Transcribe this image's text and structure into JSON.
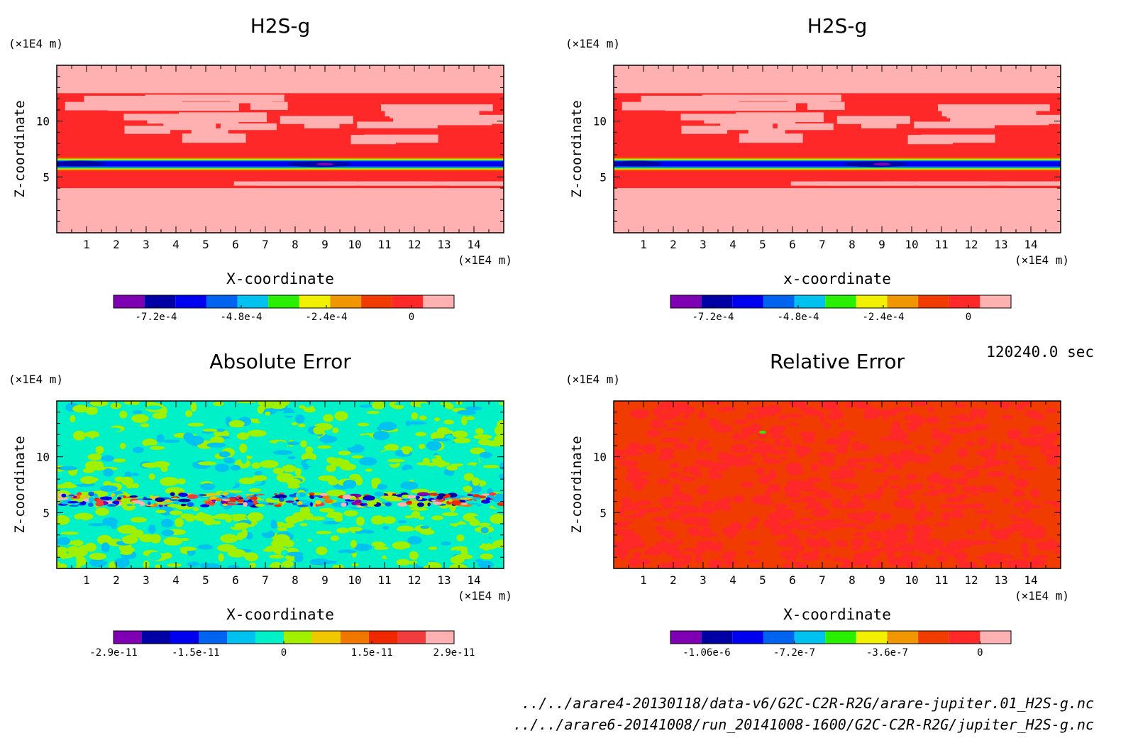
{
  "colors": {
    "absolute_scale": [
      "#7f00b2",
      "#0000a5",
      "#0000f0",
      "#0064f0",
      "#00c2f0",
      "#00f0c8",
      "#a0f000",
      "#f0c800",
      "#f07800",
      "#f02800",
      "#f03c3c",
      "#ffb0b0"
    ],
    "h2s_scale": [
      "#7f00b2",
      "#0000a5",
      "#0000f0",
      "#0064f0",
      "#00c2f0",
      "#28f000",
      "#f0f000",
      "#f09600",
      "#f03c00",
      "#ff2828",
      "#ffb0b0"
    ],
    "relative_scale": [
      "#7f00b2",
      "#0000a5",
      "#0000f0",
      "#0064f0",
      "#00c2f0",
      "#28f000",
      "#f0f000",
      "#f09600",
      "#f03c00",
      "#ff2828",
      "#ffb0b0"
    ]
  },
  "timestamp": "120240.0 sec",
  "footer": {
    "line1": "../../arare4-20130118/data-v6/G2C-C2R-R2G/arare-jupiter.01_H2S-g.nc",
    "line2": "../../arare6-20141008/run_20141008-1600/G2C-C2R-R2G/jupiter_H2S-g.nc"
  },
  "chart_data": [
    {
      "type": "heatmap",
      "title": "H2S-g",
      "xlabel": "X-coordinate",
      "ylabel": "Z-coordinate",
      "x_unit": "(×1E4 m)",
      "y_unit": "(×1E4 m)",
      "xlim": [
        0,
        15
      ],
      "ylim": [
        0,
        15
      ],
      "xticks": [
        "1",
        "2",
        "3",
        "4",
        "5",
        "6",
        "7",
        "8",
        "9",
        "10",
        "11",
        "12",
        "13",
        "14"
      ],
      "yticks": [
        "5",
        "10"
      ],
      "colorbar_ticks": [
        "-7.2e-4",
        "-4.8e-4",
        "-2.4e-4",
        "0"
      ],
      "colorbar_range": [
        -0.00084,
        0.00012
      ],
      "field": "h2s"
    },
    {
      "type": "heatmap",
      "title": "H2S-g",
      "xlabel": "x-coordinate",
      "ylabel": "Z-coordinate",
      "x_unit": "(×1E4 m)",
      "y_unit": "(×1E4 m)",
      "xlim": [
        0,
        15
      ],
      "ylim": [
        0,
        15
      ],
      "xticks": [
        "1",
        "2",
        "3",
        "4",
        "5",
        "6",
        "7",
        "8",
        "9",
        "10",
        "11",
        "12",
        "13",
        "14"
      ],
      "yticks": [
        "5",
        "10"
      ],
      "colorbar_ticks": [
        "-7.2e-4",
        "-4.8e-4",
        "-2.4e-4",
        "0"
      ],
      "colorbar_range": [
        -0.00084,
        0.00012
      ],
      "field": "h2s"
    },
    {
      "type": "heatmap",
      "title": "Absolute Error",
      "xlabel": "X-coordinate",
      "ylabel": "Z-coordinate",
      "x_unit": "(×1E4 m)",
      "y_unit": "(×1E4 m)",
      "xlim": [
        0,
        15
      ],
      "ylim": [
        0,
        15
      ],
      "xticks": [
        "1",
        "2",
        "3",
        "4",
        "5",
        "6",
        "7",
        "8",
        "9",
        "10",
        "11",
        "12",
        "13",
        "14"
      ],
      "yticks": [
        "5",
        "10"
      ],
      "colorbar_ticks": [
        "-2.9e-11",
        "-1.5e-11",
        "0",
        "1.5e-11",
        "2.9e-11"
      ],
      "colorbar_range": [
        -2.9e-11,
        2.9e-11
      ],
      "field": "abs"
    },
    {
      "type": "heatmap",
      "title": "Relative Error",
      "xlabel": "X-coordinate",
      "ylabel": "Z-coordinate",
      "x_unit": "(×1E4 m)",
      "y_unit": "(×1E4 m)",
      "xlim": [
        0,
        15
      ],
      "ylim": [
        0,
        15
      ],
      "xticks": [
        "1",
        "2",
        "3",
        "4",
        "5",
        "6",
        "7",
        "8",
        "9",
        "10",
        "11",
        "12",
        "13",
        "14"
      ],
      "yticks": [
        "5",
        "10"
      ],
      "colorbar_ticks": [
        "-1.06e-6",
        "-7.2e-7",
        "-3.6e-7",
        "0"
      ],
      "colorbar_range": [
        -1.2e-06,
        1.2e-07
      ],
      "field": "rel"
    }
  ]
}
